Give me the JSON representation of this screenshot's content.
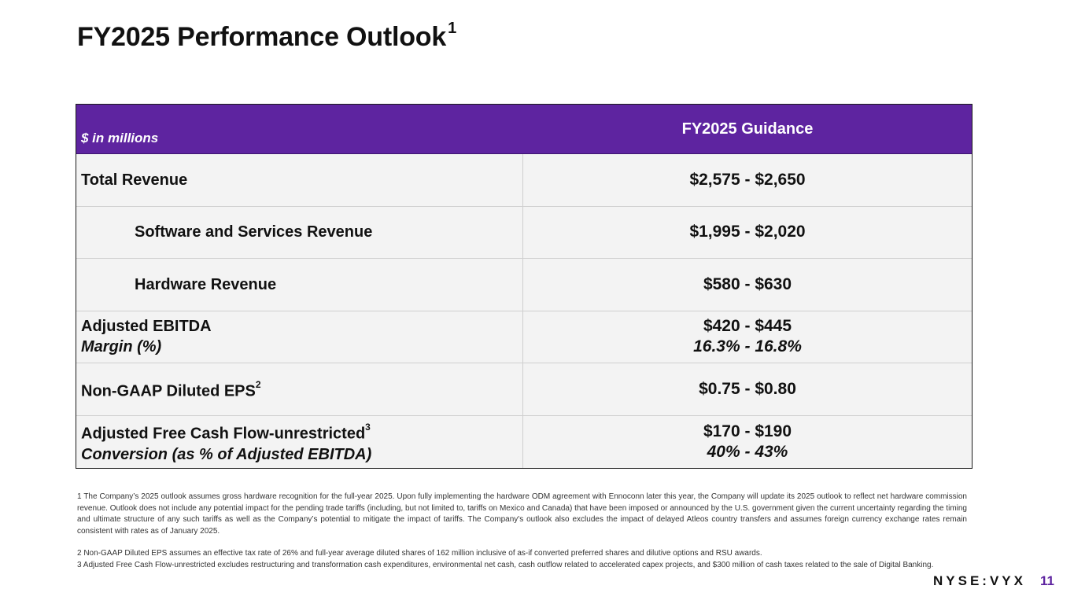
{
  "title": "FY2025 Performance Outlook",
  "title_superscript": "1",
  "table": {
    "header": {
      "units": "$ in millions",
      "column": "FY2025 Guidance"
    },
    "rows": [
      {
        "label": "Total Revenue",
        "value": "$2,575 - $2,650"
      },
      {
        "label": "Software and Services Revenue",
        "value": "$1,995 - $2,020"
      },
      {
        "label": "Hardware Revenue",
        "value": "$580 - $630"
      },
      {
        "label": "Adjusted EBITDA",
        "sublabel": "Margin (%)",
        "value": "$420 - $445",
        "subvalue": "16.3% - 16.8%"
      },
      {
        "label": "Non-GAAP Diluted EPS",
        "footnote": "2",
        "value": "$0.75 - $0.80"
      },
      {
        "label": "Adjusted Free Cash Flow-unrestricted",
        "footnote": "3",
        "sublabel": "Conversion (as % of Adjusted EBITDA)",
        "value": "$170 - $190",
        "subvalue": "40% - 43%"
      }
    ]
  },
  "footnotes": [
    "1 The Company’s 2025 outlook assumes gross hardware recognition for the full-year 2025. Upon fully implementing the hardware ODM agreement with Ennoconn later this year, the Company will update its 2025 outlook to reflect net hardware commission revenue. Outlook does not include any potential impact for the pending trade tariffs (including, but not limited to, tariffs on Mexico and Canada) that have been imposed or announced by the U.S. government given the current uncertainty regarding the timing and ultimate structure of any such tariffs as well as the Company’s potential to mitigate the impact of tariffs. The Company's outlook also excludes the impact of delayed Atleos country transfers and assumes foreign currency exchange rates remain consistent with rates as of January 2025.",
    "2 Non-GAAP Diluted EPS assumes an effective tax rate of 26% and full-year average diluted shares of 162 million inclusive of as-if converted preferred shares and dilutive options and RSU awards.",
    "3 Adjusted Free Cash Flow-unrestricted excludes restructuring and transformation cash expenditures, environmental net cash, cash outflow related to accelerated capex projects, and $300 million of cash taxes related to the sale of Digital Banking."
  ],
  "footer": {
    "ticker": "NYSE:VYX",
    "page_number": "11"
  },
  "colors": {
    "accent": "#5e24a0"
  }
}
